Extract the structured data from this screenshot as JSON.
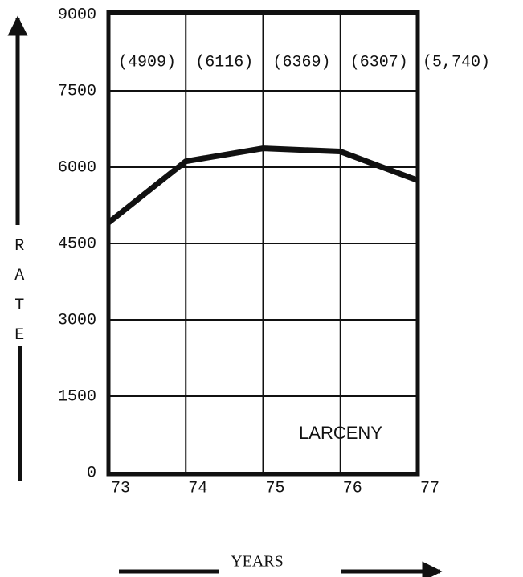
{
  "chart_data": {
    "type": "line",
    "categories": [
      "73",
      "74",
      "75",
      "76",
      "77"
    ],
    "values": [
      4909,
      6116,
      6369,
      6307,
      5740
    ],
    "value_labels": [
      "(4909)",
      "(6116)",
      "(6369)",
      "(6307)",
      "(5,740)"
    ],
    "color": "#111111",
    "ylim": [
      0,
      9000
    ],
    "yticks": [
      0,
      1500,
      3000,
      4500,
      6000,
      7500,
      9000
    ],
    "grid": true,
    "ylabel": "RATE",
    "xlabel": "YEARS",
    "annotation": "LARCENY"
  }
}
